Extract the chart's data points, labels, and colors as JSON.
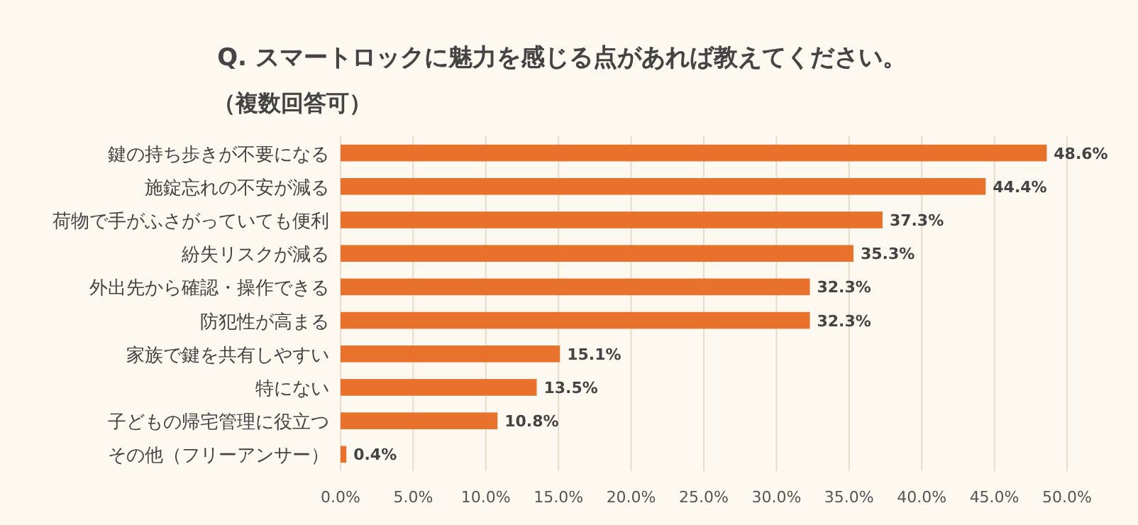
{
  "chart_data": {
    "type": "bar",
    "orientation": "horizontal",
    "title": "Q. スマートロックに魅力を感じる点があれば教えてください。",
    "subtitle": "（複数回答可）",
    "categories": [
      "鍵の持ち歩きが不要になる",
      "施錠忘れの不安が減る",
      "荷物で手がふさがっていても便利",
      "紛失リスクが減る",
      "外出先から確認・操作できる",
      "防犯性が高まる",
      "家族で鍵を共有しやすい",
      "特にない",
      "子どもの帰宅管理に役立つ",
      "その他（フリーアンサー）"
    ],
    "values": [
      48.6,
      44.4,
      37.3,
      35.3,
      32.3,
      32.3,
      15.1,
      13.5,
      10.8,
      0.4
    ],
    "value_labels": [
      "48.6%",
      "44.4%",
      "37.3%",
      "35.3%",
      "32.3%",
      "32.3%",
      "15.1%",
      "13.5%",
      "10.8%",
      "0.4%"
    ],
    "color": "#e8722c",
    "xlim": [
      0,
      50
    ],
    "xticks": [
      {
        "value": 0,
        "label": "0.0%"
      },
      {
        "value": 5,
        "label": "5.0%"
      },
      {
        "value": 10,
        "label": "10.0%"
      },
      {
        "value": 15,
        "label": "15.0%"
      },
      {
        "value": 20,
        "label": "20.0%"
      },
      {
        "value": 25,
        "label": "25.0%"
      },
      {
        "value": 30,
        "label": "30.0%"
      },
      {
        "value": 35,
        "label": "35.0%"
      },
      {
        "value": 40,
        "label": "40.0%"
      },
      {
        "value": 45,
        "label": "45.0%"
      },
      {
        "value": 50,
        "label": "50.0%"
      }
    ],
    "grid": "x"
  }
}
